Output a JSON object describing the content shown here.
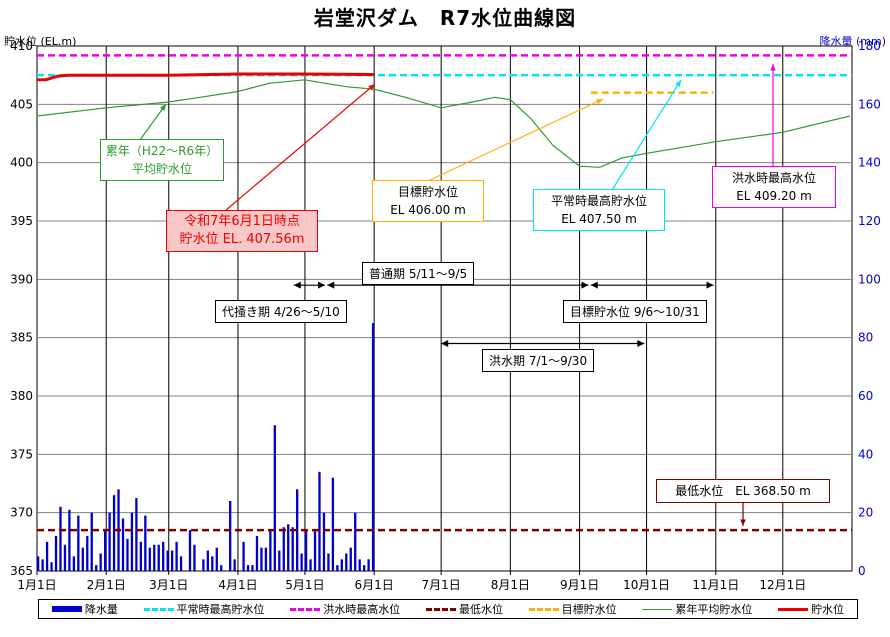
{
  "title": "岩堂沢ダム　R7水位曲線図",
  "left_axis_title": "貯水位 (EL.m)",
  "right_axis_title": "降水量 (mm)",
  "legend": {
    "precip": "降水量",
    "normal_high": "平常時最高貯水位",
    "flood_high": "洪水時最高水位",
    "min_level": "最低水位",
    "target": "目標貯水位",
    "average": "累年平均貯水位",
    "storage": "貯水位"
  },
  "annotations": {
    "average_l1": "累年（H22～R6年）",
    "average_l2": "平均貯水位",
    "current_l1": "令和7年6月1日時点",
    "current_l2": "貯水位 EL. 407.56m",
    "target_l1": "目標貯水位",
    "target_l2": "EL 406.00 m",
    "normal_l1": "平常時最高貯水位",
    "normal_l2": "EL 407.50 m",
    "flood_l1": "洪水時最高水位",
    "flood_l2": "EL 409.20 m",
    "min_l1": "最低水位　EL 368.50 m"
  },
  "periods": {
    "normal": "普通期 5/11～9/5",
    "daikaki": "代掻き期 4/26～5/10",
    "target": "目標貯水位 9/6～10/31",
    "flood": "洪水期 7/1～9/30"
  },
  "colors": {
    "precip": "#0000cc",
    "normal_high": "#00e5ee",
    "flood_high": "#ee00ee",
    "min_level": "#800000",
    "target": "#ffb000",
    "average": "#2e9a2e",
    "storage": "#ee0000",
    "right_axis": "#0000cc"
  },
  "chart_data": {
    "type": "line",
    "x_tick_labels": [
      "1月1日",
      "2月1日",
      "3月1日",
      "4月1日",
      "5月1日",
      "6月1日",
      "7月1日",
      "8月1日",
      "9月1日",
      "10月1日",
      "11月1日",
      "12月1日"
    ],
    "x_range": [
      "2025-01-01",
      "2025-12-31"
    ],
    "y_left": {
      "label": "貯水位 (EL.m)",
      "range": [
        365,
        410
      ],
      "ticks": [
        365,
        370,
        375,
        380,
        385,
        390,
        395,
        400,
        405,
        410
      ]
    },
    "y_right": {
      "label": "降水量 (mm)",
      "range": [
        0,
        180
      ],
      "ticks": [
        0,
        20,
        40,
        60,
        80,
        100,
        120,
        140,
        160,
        180
      ]
    },
    "grid": true,
    "legend_position": "bottom",
    "reference_lines": [
      {
        "name": "平常時最高貯水位",
        "value": 407.5,
        "style": "dashed",
        "x_range": [
          "2025-01-01",
          "2025-12-31"
        ]
      },
      {
        "name": "洪水時最高水位",
        "value": 409.2,
        "style": "dashed",
        "x_range": [
          "2025-01-01",
          "2025-12-31"
        ]
      },
      {
        "name": "最低水位",
        "value": 368.5,
        "style": "dashed",
        "x_range": [
          "2025-01-01",
          "2025-12-31"
        ]
      },
      {
        "name": "目標貯水位",
        "value": 406.0,
        "style": "dashed",
        "x_range": [
          "2025-09-06",
          "2025-10-31"
        ]
      }
    ],
    "series": [
      {
        "name": "累年平均貯水位",
        "axis": "left",
        "x": [
          "2025-01-01",
          "2025-02-01",
          "2025-03-01",
          "2025-03-15",
          "2025-04-01",
          "2025-04-15",
          "2025-05-01",
          "2025-05-10",
          "2025-05-20",
          "2025-06-01",
          "2025-06-15",
          "2025-07-01",
          "2025-07-15",
          "2025-07-25",
          "2025-08-01",
          "2025-08-10",
          "2025-08-20",
          "2025-09-01",
          "2025-09-10",
          "2025-09-20",
          "2025-10-01",
          "2025-11-01",
          "2025-12-01",
          "2025-12-31"
        ],
        "y": [
          404.0,
          404.7,
          405.2,
          405.6,
          406.1,
          406.8,
          407.1,
          406.8,
          406.5,
          406.3,
          405.6,
          404.7,
          405.2,
          405.6,
          405.4,
          403.8,
          401.5,
          399.7,
          399.6,
          400.4,
          400.8,
          401.8,
          402.6,
          404.0
        ]
      },
      {
        "name": "貯水位",
        "axis": "left",
        "x": [
          "2025-01-01",
          "2025-01-05",
          "2025-01-10",
          "2025-01-15",
          "2025-02-01",
          "2025-03-01",
          "2025-04-01",
          "2025-05-01",
          "2025-06-01"
        ],
        "y": [
          407.1,
          407.1,
          407.4,
          407.5,
          407.5,
          407.5,
          407.6,
          407.6,
          407.56
        ]
      },
      {
        "name": "降水量",
        "axis": "right",
        "type": "bar",
        "x": [
          "2025-01-01",
          "2025-01-03",
          "2025-01-05",
          "2025-01-07",
          "2025-01-09",
          "2025-01-11",
          "2025-01-13",
          "2025-01-15",
          "2025-01-17",
          "2025-01-19",
          "2025-01-21",
          "2025-01-23",
          "2025-01-25",
          "2025-01-27",
          "2025-01-29",
          "2025-01-31",
          "2025-02-02",
          "2025-02-04",
          "2025-02-06",
          "2025-02-08",
          "2025-02-10",
          "2025-02-12",
          "2025-02-14",
          "2025-02-16",
          "2025-02-18",
          "2025-02-20",
          "2025-02-22",
          "2025-02-24",
          "2025-02-26",
          "2025-02-28",
          "2025-03-02",
          "2025-03-04",
          "2025-03-06",
          "2025-03-08",
          "2025-03-10",
          "2025-03-12",
          "2025-03-14",
          "2025-03-16",
          "2025-03-18",
          "2025-03-20",
          "2025-03-22",
          "2025-03-24",
          "2025-03-26",
          "2025-03-28",
          "2025-03-30",
          "2025-04-01",
          "2025-04-03",
          "2025-04-05",
          "2025-04-07",
          "2025-04-09",
          "2025-04-11",
          "2025-04-13",
          "2025-04-15",
          "2025-04-17",
          "2025-04-19",
          "2025-04-21",
          "2025-04-23",
          "2025-04-25",
          "2025-04-27",
          "2025-04-29",
          "2025-05-01",
          "2025-05-03",
          "2025-05-05",
          "2025-05-07",
          "2025-05-09",
          "2025-05-11",
          "2025-05-13",
          "2025-05-15",
          "2025-05-17",
          "2025-05-19",
          "2025-05-21",
          "2025-05-23",
          "2025-05-25",
          "2025-05-27",
          "2025-05-29",
          "2025-05-31"
        ],
        "y": [
          5,
          4,
          10,
          3,
          12,
          22,
          9,
          21,
          5,
          19,
          8,
          12,
          20,
          2,
          6,
          14,
          20,
          26,
          28,
          18,
          11,
          20,
          25,
          10,
          19,
          8,
          9,
          9,
          10,
          7,
          7,
          10,
          5,
          0,
          14,
          9,
          0,
          4,
          7,
          5,
          8,
          2,
          0,
          24,
          4,
          0,
          10,
          2,
          2,
          12,
          8,
          8,
          14,
          50,
          7,
          15,
          16,
          15,
          28,
          6,
          14,
          4,
          14,
          34,
          20,
          6,
          32,
          2,
          4,
          6,
          8,
          20,
          4,
          2,
          4,
          85
        ]
      }
    ]
  }
}
